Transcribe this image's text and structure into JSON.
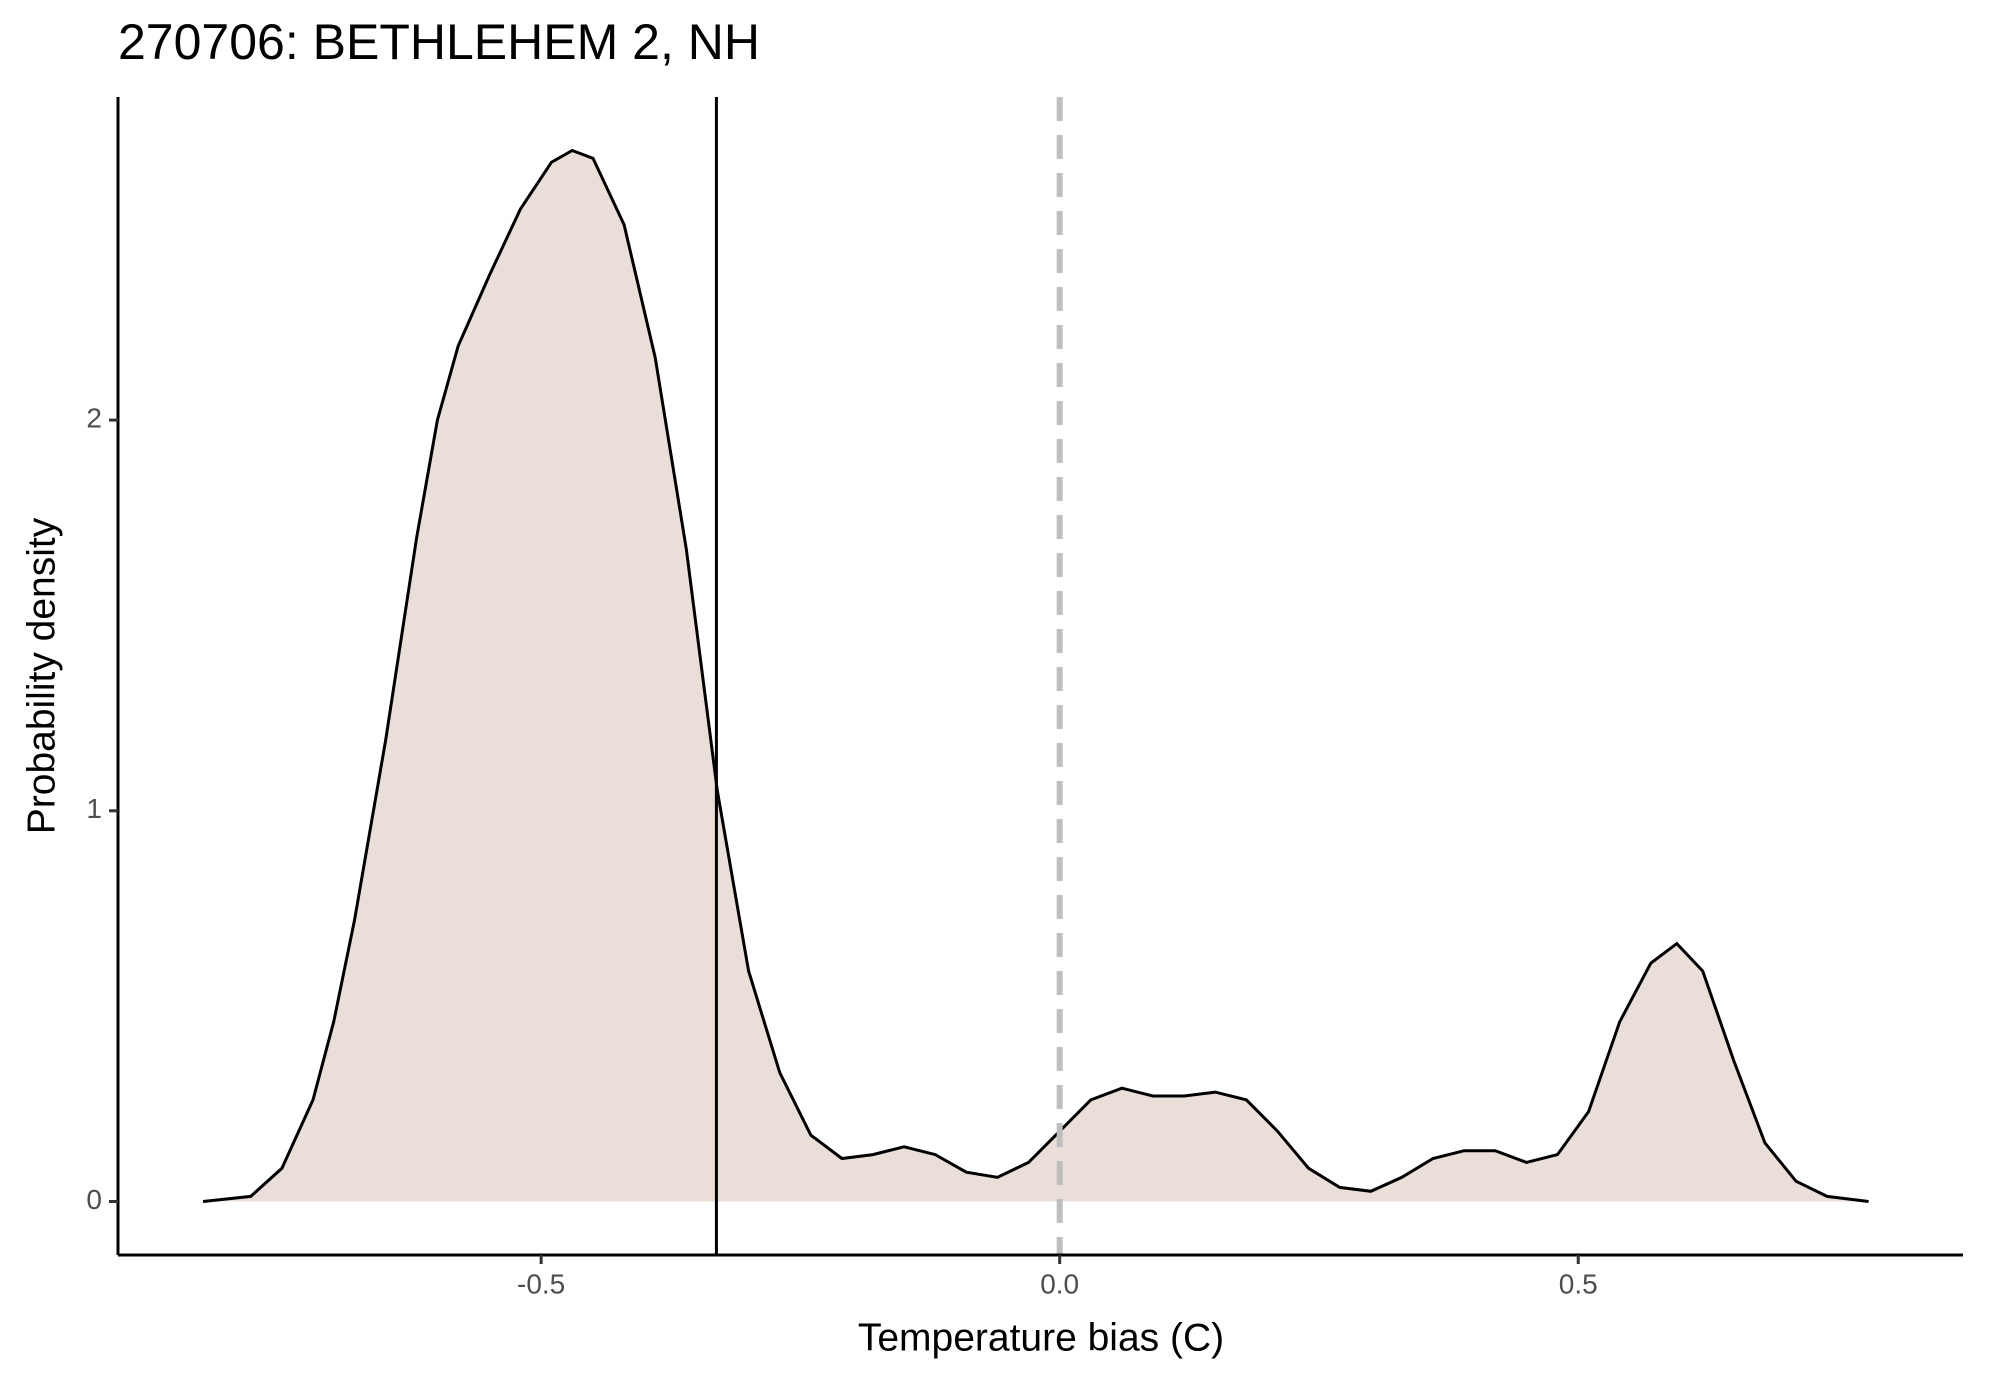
{
  "chart_data": {
    "type": "area",
    "title": "270706: BETHLEHEM 2, NH",
    "x_label": "Temperature bias (C)",
    "y_label": "Probability density",
    "x": [
      -0.826,
      -0.78,
      -0.75,
      -0.72,
      -0.7,
      -0.68,
      -0.65,
      -0.62,
      -0.6,
      -0.58,
      -0.55,
      -0.52,
      -0.49,
      -0.47,
      -0.45,
      -0.42,
      -0.39,
      -0.36,
      -0.33,
      -0.3,
      -0.27,
      -0.24,
      -0.21,
      -0.18,
      -0.15,
      -0.12,
      -0.09,
      -0.06,
      -0.03,
      0.0,
      0.03,
      0.06,
      0.09,
      0.12,
      0.15,
      0.18,
      0.21,
      0.24,
      0.27,
      0.3,
      0.33,
      0.36,
      0.39,
      0.42,
      0.45,
      0.48,
      0.51,
      0.54,
      0.57,
      0.595,
      0.62,
      0.65,
      0.68,
      0.71,
      0.74,
      0.78
    ],
    "series": [
      {
        "color": "#eaded9",
        "values": [
          0,
          0.013,
          0.085,
          0.26,
          0.46,
          0.72,
          1.18,
          1.7,
          2.0,
          2.19,
          2.37,
          2.54,
          2.66,
          2.69,
          2.67,
          2.5,
          2.16,
          1.67,
          1.05,
          0.59,
          0.33,
          0.17,
          0.11,
          0.12,
          0.14,
          0.12,
          0.075,
          0.062,
          0.1,
          0.18,
          0.26,
          0.29,
          0.27,
          0.27,
          0.28,
          0.26,
          0.18,
          0.085,
          0.036,
          0.026,
          0.062,
          0.11,
          0.13,
          0.13,
          0.1,
          0.12,
          0.23,
          0.46,
          0.61,
          0.66,
          0.59,
          0.36,
          0.15,
          0.052,
          0.013,
          0
        ]
      }
    ],
    "reference_lines": [
      {
        "value": -0.331,
        "style": "solid",
        "color": "#000000"
      },
      {
        "value": 0,
        "style": "dashed",
        "color": "#bebebe"
      }
    ],
    "xlim": [
      -0.908,
      0.871
    ],
    "ylim": [
      -0.137,
      2.827
    ],
    "xticks": [
      {
        "value": -0.5,
        "label": "-0.5"
      },
      {
        "value": 0,
        "label": "0.0"
      },
      {
        "value": 0.5,
        "label": "0.5"
      }
    ],
    "yticks": [
      0,
      1,
      2
    ]
  }
}
